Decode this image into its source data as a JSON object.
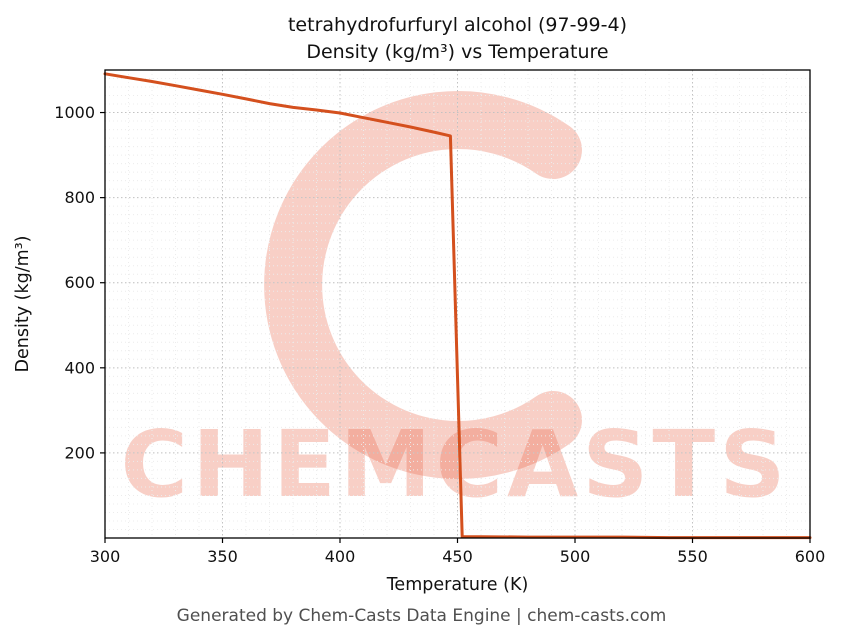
{
  "page": {
    "title_line1": "tetrahydrofurfuryl alcohol (97-99-4)",
    "title_line2": "Density (kg/m³) vs Temperature",
    "footer": "Generated by Chem-Casts Data Engine | chem-casts.com",
    "watermark_text": "CHEMCASTS"
  },
  "chart_data": {
    "type": "line",
    "title": "tetrahydrofurfuryl alcohol (97-99-4) — Density (kg/m³) vs Temperature",
    "xlabel": "Temperature (K)",
    "ylabel": "Density (kg/m³)",
    "xlim": [
      300,
      600
    ],
    "ylim": [
      0,
      1100
    ],
    "x_ticks": [
      300,
      350,
      400,
      450,
      500,
      550,
      600
    ],
    "y_ticks": [
      200,
      400,
      600,
      800,
      1000
    ],
    "grid": true,
    "line_color": "#d4501e",
    "watermark_color": "rgba(234,106,78,0.32)",
    "series": [
      {
        "name": "density",
        "points": [
          [
            300,
            1091
          ],
          [
            310,
            1082
          ],
          [
            320,
            1073
          ],
          [
            330,
            1063
          ],
          [
            340,
            1053
          ],
          [
            350,
            1043
          ],
          [
            360,
            1032
          ],
          [
            370,
            1021
          ],
          [
            380,
            1012
          ],
          [
            390,
            1006
          ],
          [
            400,
            999
          ],
          [
            410,
            988
          ],
          [
            420,
            977
          ],
          [
            430,
            966
          ],
          [
            440,
            954
          ],
          [
            447,
            945
          ],
          [
            452,
            3
          ],
          [
            460,
            3
          ],
          [
            480,
            2
          ],
          [
            500,
            2
          ],
          [
            520,
            2
          ],
          [
            540,
            1
          ],
          [
            560,
            1
          ],
          [
            580,
            1
          ],
          [
            600,
            1
          ]
        ]
      }
    ]
  }
}
